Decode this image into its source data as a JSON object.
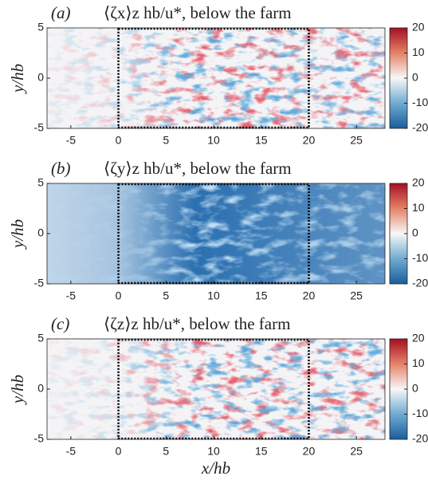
{
  "chart_data": [
    {
      "type": "heatmap",
      "panel_label": "(a)",
      "title": "⟨ζx⟩z hb/u*, below the farm",
      "xlim": [
        -7.5,
        28
      ],
      "ylim": [
        -5,
        5
      ],
      "xticks": [
        -5,
        0,
        5,
        10,
        15,
        20,
        25
      ],
      "yticks": [
        -5,
        0,
        5
      ],
      "ylabel": "y/hb",
      "clim": [
        -20,
        20
      ],
      "cticks": [
        20,
        10,
        0,
        -10,
        -20
      ],
      "colormap": "RdBu",
      "farm_region": {
        "x": [
          0,
          20
        ],
        "y": [
          -5,
          5
        ]
      }
    },
    {
      "type": "heatmap",
      "panel_label": "(b)",
      "title": "⟨ζy⟩z hb/u*, below the farm",
      "xlim": [
        -7.5,
        28
      ],
      "ylim": [
        -5,
        5
      ],
      "xticks": [
        -5,
        0,
        5,
        10,
        15,
        20,
        25
      ],
      "yticks": [
        -5,
        0,
        5
      ],
      "ylabel": "y/hb",
      "clim": [
        -20,
        20
      ],
      "cticks": [
        20,
        10,
        0,
        -10,
        -20
      ],
      "colormap": "RdBu",
      "farm_region": {
        "x": [
          0,
          20
        ],
        "y": [
          -5,
          5
        ]
      }
    },
    {
      "type": "heatmap",
      "panel_label": "(c)",
      "title": "⟨ζz⟩z hb/u*, below the farm",
      "xlim": [
        -7.5,
        28
      ],
      "ylim": [
        -5,
        5
      ],
      "xticks": [
        -5,
        0,
        5,
        10,
        15,
        20,
        25
      ],
      "yticks": [
        -5,
        0,
        5
      ],
      "ylabel": "y/hb",
      "xlabel": "x/hb",
      "clim": [
        -20,
        20
      ],
      "cticks": [
        20,
        10,
        0,
        -10,
        -20
      ],
      "colormap": "RdBu",
      "farm_region": {
        "x": [
          0,
          20
        ],
        "y": [
          -5,
          5
        ]
      }
    }
  ]
}
